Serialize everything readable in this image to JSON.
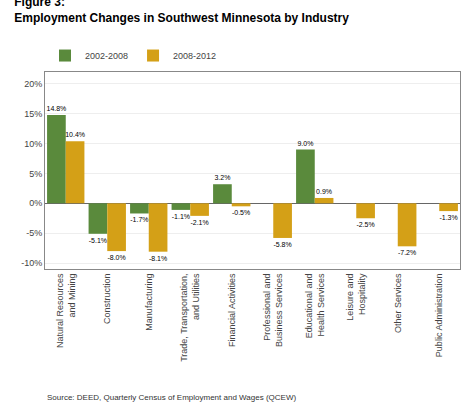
{
  "chart_data": {
    "type": "bar",
    "title": "Figure 3:",
    "subtitle": "Employment Changes in Southwest Minnesota by Industry",
    "categories": [
      "Natural Resources\nand Mining",
      "Construction",
      "Manufacturing",
      "Trade, Transportation,\nand Utilities",
      "Financial Activities",
      "Professional and\nBusiness Services",
      "Educational and\nHealth Services",
      "Leisure and\nHospitality",
      "Other Services",
      "Public Administration"
    ],
    "series": [
      {
        "name": "2002-2008",
        "color": "#5a8a3c",
        "values": [
          14.8,
          -5.1,
          -1.7,
          -1.1,
          3.2,
          null,
          9.0,
          null,
          null,
          null
        ],
        "value_labels": [
          "14.8%",
          "-5.1%",
          "-1.7%",
          "-1.1%",
          "3.2%",
          null,
          "9.0%",
          null,
          null,
          null
        ]
      },
      {
        "name": "2008-2012",
        "color": "#d4a017",
        "values": [
          10.4,
          -8.0,
          -8.1,
          -2.1,
          -0.5,
          -5.8,
          0.9,
          -2.5,
          -7.2,
          -1.3
        ],
        "value_labels": [
          "10.4%",
          "-8.0%",
          "-8.1%",
          "-2.1%",
          "-0.5%",
          "-5.8%",
          "0.9%",
          "-2.5%",
          "-7.2%",
          "-1.3%"
        ]
      }
    ],
    "ylim": [
      -11,
      22
    ],
    "yticks": [
      {
        "value": -10,
        "label": "-10%"
      },
      {
        "value": -5,
        "label": "-5%"
      },
      {
        "value": 0,
        "label": "0%"
      },
      {
        "value": 5,
        "label": "5%"
      },
      {
        "value": 10,
        "label": "10%"
      },
      {
        "value": 15,
        "label": "15%"
      },
      {
        "value": 20,
        "label": "20%"
      }
    ],
    "grid": true,
    "legend": "upper left",
    "data_labels": true,
    "annotations": [
      "Source: DEED, Quarterly Census of Employment and Wages (QCEW)"
    ]
  }
}
